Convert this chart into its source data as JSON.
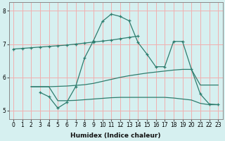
{
  "background_color": "#d6f0f0",
  "grid_color": "#f0b0b0",
  "line_color": "#2e7d6e",
  "xlabel": "Humidex (Indice chaleur)",
  "xlim": [
    -0.5,
    23.5
  ],
  "ylim": [
    4.75,
    8.25
  ],
  "yticks": [
    5,
    6,
    7,
    8
  ],
  "xticks": [
    0,
    1,
    2,
    3,
    4,
    5,
    6,
    7,
    8,
    9,
    10,
    11,
    12,
    13,
    14,
    15,
    16,
    17,
    18,
    19,
    20,
    21,
    22,
    23
  ],
  "line_nearly_flat_top": {
    "x": [
      0,
      1,
      2,
      3,
      4,
      5,
      6,
      7,
      8,
      9,
      10,
      11,
      12,
      13,
      14
    ],
    "y": [
      6.85,
      6.87,
      6.89,
      6.91,
      6.93,
      6.95,
      6.97,
      7.0,
      7.03,
      7.06,
      7.09,
      7.12,
      7.16,
      7.2,
      7.24
    ]
  },
  "line_peaked": {
    "x": [
      3,
      4,
      5,
      6,
      7,
      8,
      9,
      10,
      11,
      12,
      13,
      14,
      15,
      16,
      17,
      18,
      19,
      20,
      21,
      22,
      23
    ],
    "y": [
      5.55,
      5.42,
      5.08,
      5.25,
      5.72,
      6.58,
      7.1,
      7.68,
      7.9,
      7.83,
      7.7,
      7.05,
      6.7,
      6.32,
      6.32,
      7.08,
      7.08,
      6.25,
      5.5,
      5.2,
      5.18
    ]
  },
  "line_mid": {
    "x": [
      2,
      3,
      4,
      5,
      6,
      7,
      8,
      9,
      10,
      11,
      12,
      13,
      14,
      15,
      16,
      17,
      18,
      19,
      20,
      21,
      22,
      23
    ],
    "y": [
      5.72,
      5.72,
      5.72,
      5.73,
      5.74,
      5.76,
      5.78,
      5.82,
      5.88,
      5.94,
      6.0,
      6.05,
      6.09,
      6.13,
      6.16,
      6.19,
      6.22,
      6.24,
      6.24,
      5.77,
      5.77,
      5.77
    ]
  },
  "line_low": {
    "x": [
      2,
      3,
      4,
      5,
      6,
      7,
      8,
      9,
      10,
      11,
      12,
      13,
      14,
      15,
      16,
      17,
      18,
      19,
      20,
      21,
      22,
      23
    ],
    "y": [
      5.72,
      5.72,
      5.72,
      5.3,
      5.3,
      5.31,
      5.33,
      5.35,
      5.37,
      5.39,
      5.4,
      5.4,
      5.4,
      5.4,
      5.4,
      5.4,
      5.38,
      5.35,
      5.32,
      5.22,
      5.18,
      5.18
    ]
  }
}
